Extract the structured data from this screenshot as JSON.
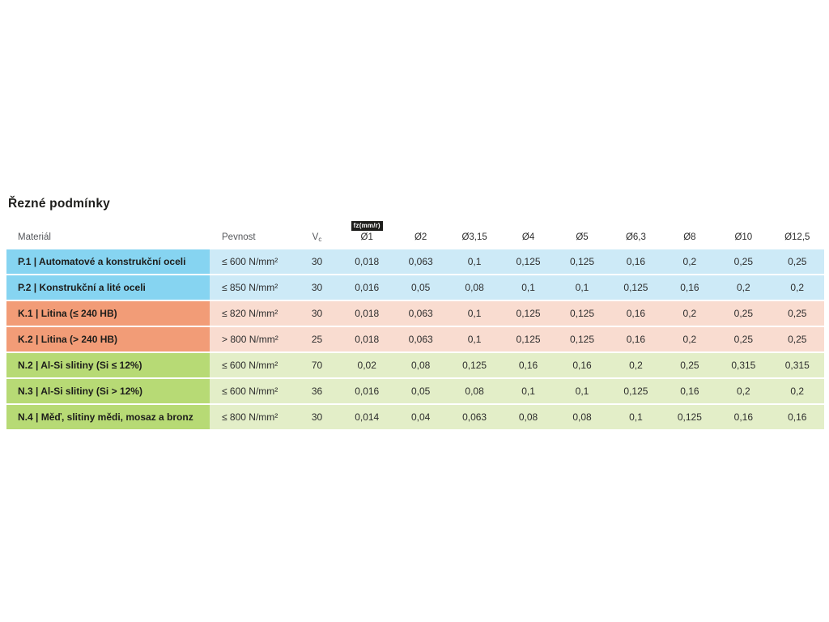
{
  "page": {
    "title": "Řezné podmínky"
  },
  "colors": {
    "steel_accent": "#86d4f1",
    "steel_tint": "#cdeaf7",
    "cast_iron_accent": "#f29c77",
    "cast_iron_tint": "#f9dcd0",
    "nonferrous_accent": "#b7da75",
    "nonferrous_tint": "#e3eec8",
    "badge_bg": "#1d1d1b",
    "badge_text": "#ffffff"
  },
  "table": {
    "headers": {
      "material": "Materiál",
      "strength": "Pevnost",
      "vc_main": "V",
      "vc_sub": "c",
      "fz_badge": "fz(mm/r)",
      "diameters": [
        "Ø1",
        "Ø2",
        "Ø3,15",
        "Ø4",
        "Ø5",
        "Ø6,3",
        "Ø8",
        "Ø10",
        "Ø12,5"
      ]
    },
    "rows": [
      {
        "group": "P",
        "material": "P.1 | Automatové a konstrukční oceli",
        "strength": "≤ 600 N/mm²",
        "vc": "30",
        "values": [
          "0,018",
          "0,063",
          "0,1",
          "0,125",
          "0,125",
          "0,16",
          "0,2",
          "0,25",
          "0,25"
        ]
      },
      {
        "group": "P",
        "material": "P.2 | Konstrukční a lité oceli",
        "strength": "≤ 850 N/mm²",
        "vc": "30",
        "values": [
          "0,016",
          "0,05",
          "0,08",
          "0,1",
          "0,1",
          "0,125",
          "0,16",
          "0,2",
          "0,2"
        ]
      },
      {
        "group": "K",
        "material": "K.1 | Litina (≤ 240 HB)",
        "strength": "≤ 820 N/mm²",
        "vc": "30",
        "values": [
          "0,018",
          "0,063",
          "0,1",
          "0,125",
          "0,125",
          "0,16",
          "0,2",
          "0,25",
          "0,25"
        ]
      },
      {
        "group": "K",
        "material": "K.2 | Litina (> 240 HB)",
        "strength": "> 800 N/mm²",
        "vc": "25",
        "values": [
          "0,018",
          "0,063",
          "0,1",
          "0,125",
          "0,125",
          "0,16",
          "0,2",
          "0,25",
          "0,25"
        ]
      },
      {
        "group": "N",
        "material": "N.2 | Al-Si slitiny (Si ≤ 12%)",
        "strength": "≤ 600 N/mm²",
        "vc": "70",
        "values": [
          "0,02",
          "0,08",
          "0,125",
          "0,16",
          "0,16",
          "0,2",
          "0,25",
          "0,315",
          "0,315"
        ]
      },
      {
        "group": "N",
        "material": "N.3 | Al-Si slitiny (Si > 12%)",
        "strength": "≤ 600 N/mm²",
        "vc": "36",
        "values": [
          "0,016",
          "0,05",
          "0,08",
          "0,1",
          "0,1",
          "0,125",
          "0,16",
          "0,2",
          "0,2"
        ]
      },
      {
        "group": "N",
        "material": "N.4 | Měď, slitiny mědi, mosaz a bronz",
        "strength": "≤ 800 N/mm²",
        "vc": "30",
        "values": [
          "0,014",
          "0,04",
          "0,063",
          "0,08",
          "0,08",
          "0,1",
          "0,125",
          "0,16",
          "0,16"
        ]
      }
    ]
  }
}
